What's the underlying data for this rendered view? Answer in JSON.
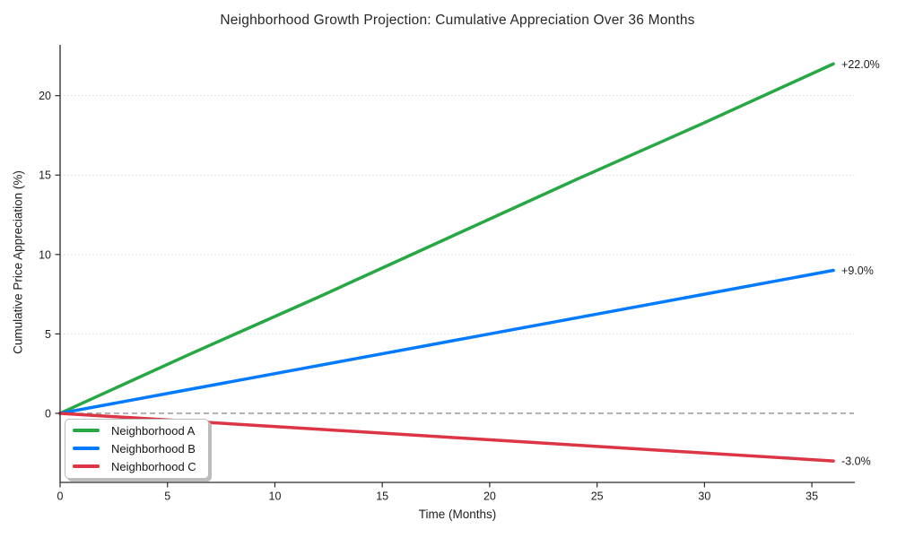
{
  "chart_data": {
    "type": "line",
    "title": "Neighborhood Growth Projection: Cumulative Appreciation Over 36 Months",
    "xlabel": "Time (Months)",
    "ylabel": "Cumulative Price Appreciation (%)",
    "x": [
      0,
      6,
      12,
      18,
      24,
      30,
      36
    ],
    "series": [
      {
        "name": "Neighborhood A",
        "color": "#28a745",
        "values": [
          0,
          3.7,
          7.3,
          11.0,
          14.7,
          18.3,
          22.0
        ],
        "final_value": 22.0,
        "end_label": "+22.0%"
      },
      {
        "name": "Neighborhood B",
        "color": "#007bff",
        "values": [
          0,
          1.5,
          3.0,
          4.5,
          6.0,
          7.5,
          9.0
        ],
        "final_value": 9.0,
        "end_label": "+9.0%"
      },
      {
        "name": "Neighborhood C",
        "color": "#dc3545",
        "values": [
          0,
          -0.5,
          -1.0,
          -1.5,
          -2.0,
          -2.5,
          -3.0
        ],
        "final_value": -3.0,
        "end_label": "-3.0%"
      }
    ],
    "x_ticks": [
      0,
      5,
      10,
      15,
      20,
      25,
      30,
      35
    ],
    "y_ticks": [
      0,
      5,
      10,
      15,
      20
    ],
    "xlim": [
      0,
      37
    ],
    "ylim": [
      -4.35,
      23.2
    ],
    "grid": "horizontal-dotted",
    "legend_position": "lower-left",
    "zero_line": {
      "y": 0,
      "style": "dashed",
      "color": "#8f8f8f"
    }
  },
  "colors": {
    "background": "#ffffff",
    "title_text": "#282828",
    "tick_text": "#1c1c1c",
    "spine": "#2a2a2a",
    "gridline": "#dcdcdc",
    "zero_line": "#8f8f8f"
  }
}
